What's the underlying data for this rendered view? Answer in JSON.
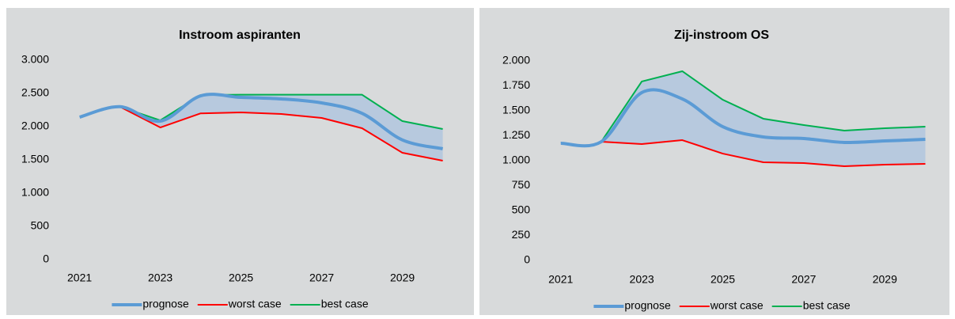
{
  "chart_data": [
    {
      "type": "line",
      "title": "Instroom aspiranten",
      "x": [
        2021,
        2022,
        2023,
        2024,
        2025,
        2026,
        2027,
        2028,
        2029,
        2030
      ],
      "xlim": [
        2020.4,
        2030.4
      ],
      "xticks": [
        2021,
        2023,
        2025,
        2027,
        2029
      ],
      "ylim": [
        0,
        3000
      ],
      "yticks": [
        0,
        500,
        {
          "value": 1000,
          "label": "1.000"
        },
        {
          "value": 1500,
          "label": "1.500"
        },
        {
          "value": 2000,
          "label": "2.000"
        },
        {
          "value": 2500,
          "label": "2.500"
        },
        {
          "value": 3000,
          "label": "3.000"
        }
      ],
      "band_color": "#b7c9de",
      "series": [
        {
          "name": "prognose",
          "color": "#5b9bd5",
          "smooth": true,
          "values": [
            2143,
            2300,
            2083,
            2464,
            2440,
            2417,
            2357,
            2200,
            1800,
            1667
          ]
        },
        {
          "name": "worst case",
          "color": "#ff0000",
          "values": [
            null,
            2300,
            1988,
            2200,
            2214,
            2190,
            2131,
            1976,
            1607,
            1488
          ]
        },
        {
          "name": "best case",
          "color": "#00b050",
          "values": [
            null,
            2300,
            2095,
            2476,
            2480,
            2480,
            2480,
            2480,
            2083,
            1964
          ]
        }
      ]
    },
    {
      "type": "line",
      "title": "Zij-instroom OS",
      "x": [
        2021,
        2022,
        2023,
        2024,
        2025,
        2026,
        2027,
        2028,
        2029,
        2030
      ],
      "xlim": [
        2020.4,
        2030.4
      ],
      "xticks": [
        2021,
        2023,
        2025,
        2027,
        2029
      ],
      "ylim": [
        0,
        2000
      ],
      "yticks": [
        0,
        250,
        500,
        750,
        {
          "value": 1000,
          "label": "1.000"
        },
        {
          "value": 1250,
          "label": "1.250"
        },
        {
          "value": 1500,
          "label": "1.500"
        },
        {
          "value": 1750,
          "label": "1.750"
        },
        {
          "value": 2000,
          "label": "2.000"
        }
      ],
      "band_color": "#b7c9de",
      "series": [
        {
          "name": "prognose",
          "color": "#5b9bd5",
          "smooth": true,
          "values": [
            1175,
            1190,
            1683,
            1619,
            1341,
            1238,
            1222,
            1183,
            1198,
            1214
          ]
        },
        {
          "name": "worst case",
          "color": "#ff0000",
          "values": [
            null,
            1190,
            1167,
            1206,
            1071,
            984,
            976,
            944,
            960,
            968
          ]
        },
        {
          "name": "best case",
          "color": "#00b050",
          "values": [
            null,
            1190,
            1794,
            1897,
            1611,
            1421,
            1357,
            1302,
            1325,
            1341
          ]
        }
      ]
    }
  ]
}
